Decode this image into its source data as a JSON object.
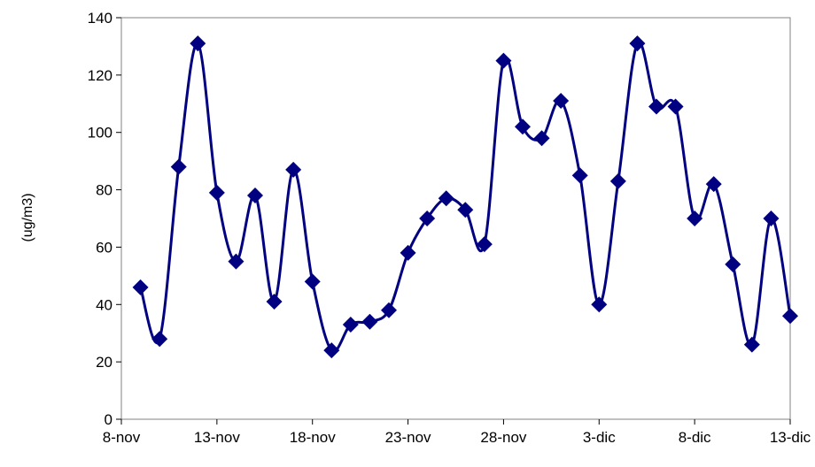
{
  "chart_data": {
    "type": "line",
    "title": "",
    "xlabel": "",
    "ylabel": "(ug/m3)",
    "ylim": [
      0,
      140
    ],
    "yticks": [
      0,
      20,
      40,
      60,
      80,
      100,
      120,
      140
    ],
    "xticks": [
      {
        "label": "8-nov",
        "date": "2007-11-08"
      },
      {
        "label": "13-nov",
        "date": "2007-11-13"
      },
      {
        "label": "18-nov",
        "date": "2007-11-18"
      },
      {
        "label": "23-nov",
        "date": "2007-11-23"
      },
      {
        "label": "28-nov",
        "date": "2007-11-28"
      },
      {
        "label": "3-dic",
        "date": "2007-12-03"
      },
      {
        "label": "8-dic",
        "date": "2007-12-08"
      },
      {
        "label": "13-dic",
        "date": "2007-12-13"
      }
    ],
    "grid": false,
    "legend": false,
    "series": [
      {
        "color": "#000080",
        "marker": "diamond",
        "x": [
          "2007-11-09",
          "2007-11-10",
          "2007-11-11",
          "2007-11-12",
          "2007-11-13",
          "2007-11-14",
          "2007-11-15",
          "2007-11-16",
          "2007-11-17",
          "2007-11-18",
          "2007-11-19",
          "2007-11-20",
          "2007-11-21",
          "2007-11-22",
          "2007-11-23",
          "2007-11-24",
          "2007-11-25",
          "2007-11-26",
          "2007-11-27",
          "2007-11-28",
          "2007-11-29",
          "2007-11-30",
          "2007-12-01",
          "2007-12-02",
          "2007-12-03",
          "2007-12-04",
          "2007-12-05",
          "2007-12-06",
          "2007-12-07",
          "2007-12-08",
          "2007-12-09",
          "2007-12-10",
          "2007-12-11",
          "2007-12-12",
          "2007-12-13"
        ],
        "values": [
          46,
          28,
          88,
          131,
          79,
          55,
          78,
          41,
          87,
          48,
          24,
          33,
          34,
          38,
          58,
          70,
          77,
          73,
          61,
          125,
          102,
          98,
          111,
          85,
          40,
          83,
          131,
          109,
          109,
          70,
          82,
          54,
          26,
          70,
          36
        ]
      }
    ]
  }
}
